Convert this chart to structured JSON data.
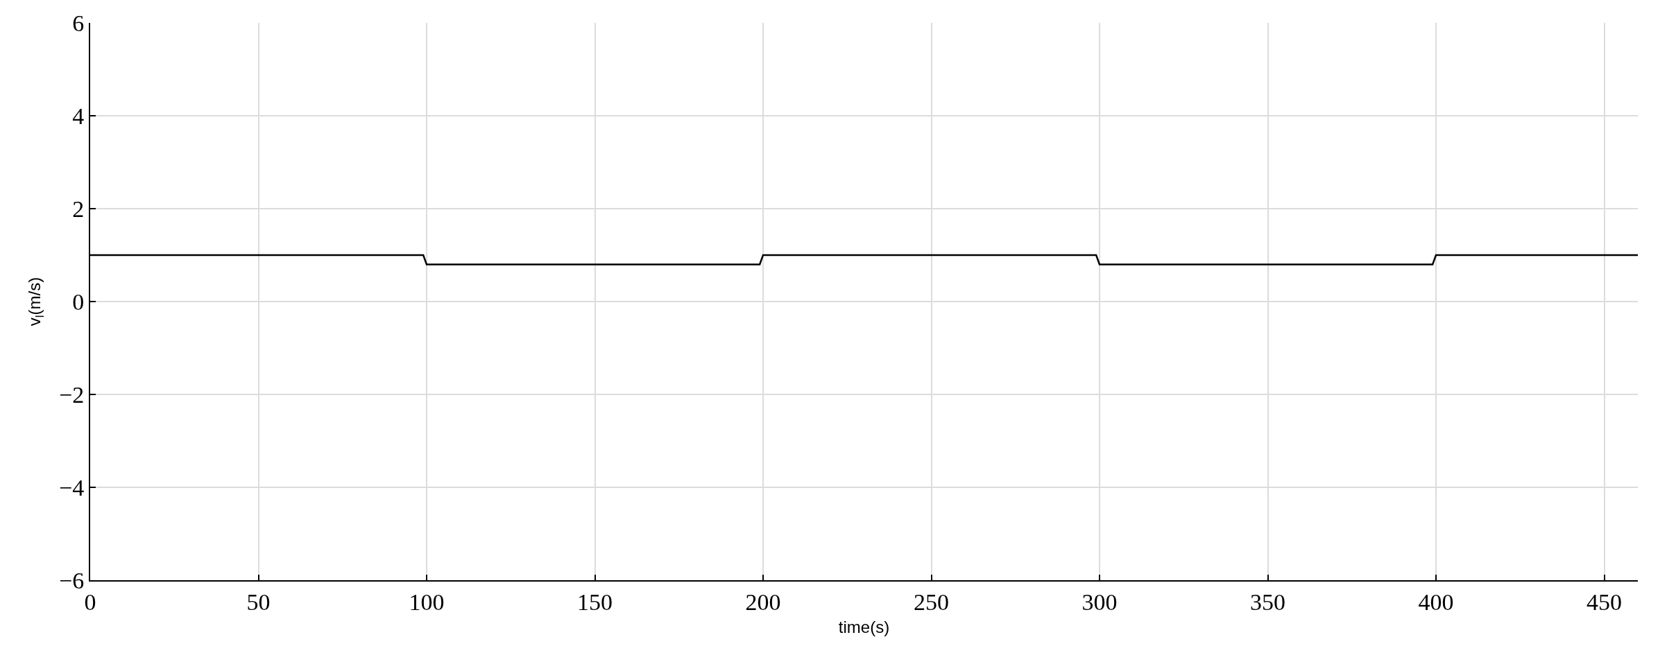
{
  "chart_data": {
    "type": "line",
    "xlabel": "time(s)",
    "ylabel": "v$_{l}$(m/s)",
    "x": [
      0,
      99,
      100,
      199,
      200,
      299,
      300,
      399,
      400,
      460
    ],
    "series": [
      {
        "color": "#000000",
        "values": [
          1,
          1,
          0.8,
          0.8,
          1,
          1,
          0.8,
          0.8,
          1,
          1
        ]
      }
    ],
    "xlim": [
      0,
      460
    ],
    "xticks": [
      0,
      50,
      100,
      150,
      200,
      250,
      300,
      350,
      400,
      450
    ],
    "ylim": [
      -6,
      6
    ],
    "yticks": [
      -6,
      -4,
      -2,
      0,
      2,
      4,
      6
    ],
    "grid": true
  }
}
